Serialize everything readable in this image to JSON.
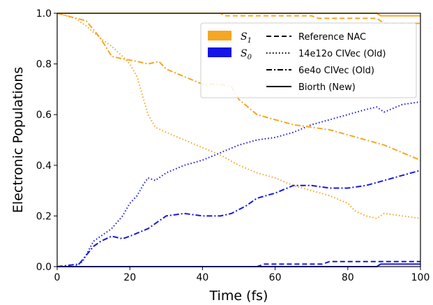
{
  "chart_data": {
    "type": "line",
    "xlabel": "Time (fs)",
    "ylabel": "Electronic Populations",
    "xlim": [
      0,
      100
    ],
    "ylim": [
      0,
      1.0
    ],
    "x_ticks": [
      "0",
      "20",
      "40",
      "60",
      "80",
      "100"
    ],
    "y_ticks": [
      "0.0",
      "0.2",
      "0.4",
      "0.6",
      "0.8",
      "1.0"
    ],
    "grid": false,
    "legend_placement": "top-right",
    "states": [
      {
        "label_main": "S",
        "label_sub": "1",
        "color": "#F5A623"
      },
      {
        "label_main": "S",
        "label_sub": "0",
        "color": "#1515E6"
      }
    ],
    "methods": [
      {
        "label": "Reference NAC",
        "style": "dashed"
      },
      {
        "label": "14e12o CIVec (Old)",
        "style": "dotted"
      },
      {
        "label": "6e4o CIVec (Old)",
        "style": "dashdot"
      },
      {
        "label": "Biorth (New)",
        "style": "solid"
      }
    ],
    "series": [
      {
        "state": "S1",
        "method": "solid",
        "x": [
          0,
          88,
          89,
          100
        ],
        "y": [
          1.0,
          1.0,
          0.99,
          0.99
        ]
      },
      {
        "state": "S0",
        "method": "solid",
        "x": [
          0,
          88,
          89,
          100
        ],
        "y": [
          0.0,
          0.0,
          0.01,
          0.01
        ]
      },
      {
        "state": "S1",
        "method": "dashed",
        "x": [
          0,
          45,
          46,
          70,
          72,
          88,
          90,
          100
        ],
        "y": [
          1.0,
          1.0,
          0.99,
          0.99,
          0.98,
          0.98,
          0.96,
          0.96
        ]
      },
      {
        "state": "S0",
        "method": "dashed",
        "x": [
          0,
          55,
          57,
          73,
          75,
          100
        ],
        "y": [
          0.0,
          0.0,
          0.01,
          0.01,
          0.02,
          0.02
        ]
      },
      {
        "state": "S1",
        "method": "dotted",
        "x": [
          0,
          5,
          8,
          12,
          15,
          18,
          20,
          22,
          24,
          25,
          27,
          30,
          35,
          40,
          45,
          50,
          55,
          60,
          65,
          70,
          75,
          80,
          82,
          85,
          88,
          90,
          95,
          100
        ],
        "y": [
          1.0,
          0.98,
          0.95,
          0.9,
          0.87,
          0.83,
          0.8,
          0.75,
          0.65,
          0.6,
          0.55,
          0.53,
          0.5,
          0.47,
          0.44,
          0.4,
          0.37,
          0.35,
          0.32,
          0.3,
          0.28,
          0.25,
          0.22,
          0.2,
          0.19,
          0.21,
          0.2,
          0.19
        ]
      },
      {
        "state": "S0",
        "method": "dotted",
        "x": [
          0,
          5,
          7,
          10,
          12,
          15,
          18,
          20,
          22,
          24,
          25,
          27,
          30,
          35,
          40,
          45,
          50,
          55,
          60,
          65,
          70,
          75,
          80,
          85,
          88,
          90,
          95,
          100
        ],
        "y": [
          0.0,
          0.0,
          0.02,
          0.1,
          0.12,
          0.15,
          0.2,
          0.25,
          0.28,
          0.33,
          0.35,
          0.34,
          0.37,
          0.4,
          0.42,
          0.45,
          0.48,
          0.5,
          0.51,
          0.53,
          0.56,
          0.58,
          0.6,
          0.62,
          0.63,
          0.61,
          0.64,
          0.65
        ]
      },
      {
        "state": "S1",
        "method": "dashdot",
        "x": [
          0,
          8,
          12,
          15,
          18,
          22,
          25,
          28,
          30,
          35,
          40,
          45,
          48,
          50,
          55,
          60,
          65,
          70,
          75,
          80,
          85,
          90,
          95,
          100
        ],
        "y": [
          1.0,
          0.97,
          0.9,
          0.83,
          0.82,
          0.81,
          0.8,
          0.81,
          0.78,
          0.75,
          0.72,
          0.72,
          0.71,
          0.66,
          0.6,
          0.58,
          0.56,
          0.55,
          0.54,
          0.52,
          0.5,
          0.48,
          0.45,
          0.42
        ]
      },
      {
        "state": "S0",
        "method": "dashdot",
        "x": [
          0,
          6,
          10,
          12,
          15,
          18,
          20,
          25,
          30,
          35,
          40,
          45,
          48,
          52,
          55,
          60,
          65,
          70,
          75,
          80,
          85,
          90,
          95,
          100
        ],
        "y": [
          0.0,
          0.01,
          0.08,
          0.1,
          0.12,
          0.11,
          0.12,
          0.15,
          0.2,
          0.21,
          0.2,
          0.2,
          0.21,
          0.24,
          0.27,
          0.29,
          0.32,
          0.32,
          0.31,
          0.31,
          0.32,
          0.34,
          0.36,
          0.38
        ]
      }
    ]
  }
}
